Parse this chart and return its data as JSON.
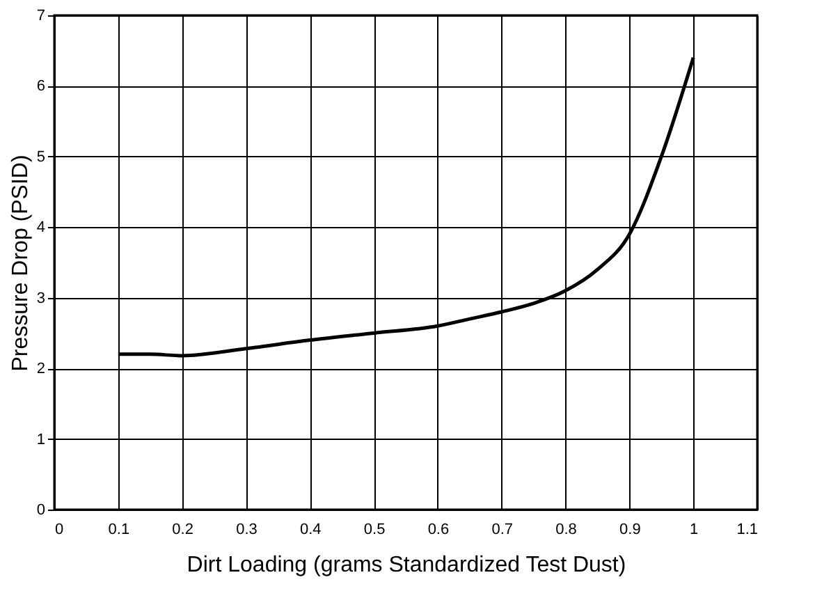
{
  "chart_data": {
    "type": "line",
    "xlabel": "Dirt Loading (grams Standardized Test Dust)",
    "ylabel": "Pressure Drop (PSID)",
    "x": [
      0.1,
      0.15,
      0.2,
      0.3,
      0.4,
      0.5,
      0.6,
      0.65,
      0.7,
      0.75,
      0.8,
      0.85,
      0.9,
      0.95,
      1.0
    ],
    "series": [
      {
        "color": "#000000",
        "values": [
          2.2,
          2.2,
          2.18,
          2.28,
          2.4,
          2.5,
          2.6,
          2.7,
          2.8,
          2.92,
          3.1,
          3.4,
          3.9,
          5.0,
          6.4
        ]
      }
    ],
    "xlim": [
      0,
      1.1
    ],
    "xticks": [
      0,
      0.1,
      0.2,
      0.3,
      0.4,
      0.5,
      0.6,
      0.7,
      0.8,
      0.9,
      1,
      1.1
    ],
    "ylim": [
      0,
      7
    ],
    "yticks": [
      0,
      1,
      2,
      3,
      4,
      5,
      6,
      7
    ],
    "grid": true,
    "legend": false,
    "marker": "none",
    "line_style": "solid"
  }
}
